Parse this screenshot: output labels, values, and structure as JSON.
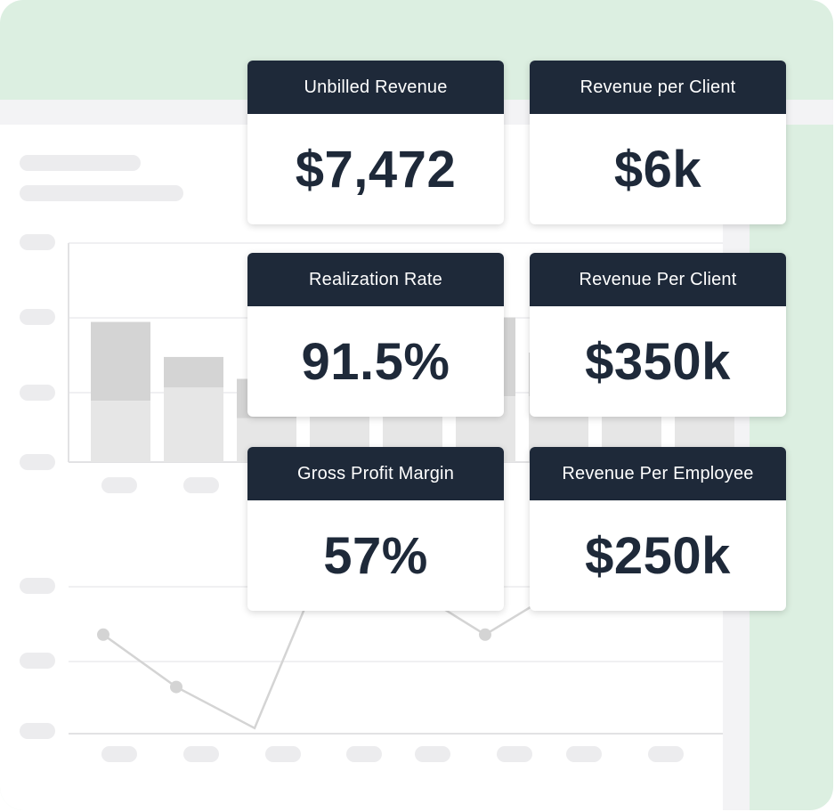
{
  "colors": {
    "frame_bg": "#dcefe1",
    "card_header": "#1e2939",
    "card_value": "#1e2939",
    "skeleton": "#ececee",
    "bar_top": "#d4d4d4",
    "bar_bottom": "#e6e6e6",
    "line": "#d4d4d4"
  },
  "background_chart": {
    "bars": [
      {
        "top": 0.64,
        "bottom": 0.28
      },
      {
        "top": 0.48,
        "bottom": 0.34
      },
      {
        "top": 0.38,
        "bottom": 0.2
      },
      {
        "top": 0.55,
        "bottom": 0.3
      },
      {
        "top": 0.6,
        "bottom": 0.32
      },
      {
        "top": 0.66,
        "bottom": 0.3
      },
      {
        "top": 0.5,
        "bottom": 0.3
      },
      {
        "top": 0.45,
        "bottom": 0.3
      },
      {
        "top": 0.52,
        "bottom": 0.3
      }
    ],
    "line_points": [
      0.52,
      0.24,
      0.02,
      1.0,
      0.78,
      0.52,
      0.76,
      0.74
    ]
  },
  "metrics": [
    {
      "label": "Unbilled Revenue",
      "value": "$7,472"
    },
    {
      "label": "Revenue per Client",
      "value": "$6k"
    },
    {
      "label": "Realization Rate",
      "value": "91.5%"
    },
    {
      "label": "Revenue Per Client",
      "value": "$350k"
    },
    {
      "label": "Gross Profit Margin",
      "value": "57%"
    },
    {
      "label": "Revenue Per Employee",
      "value": "$250k"
    }
  ]
}
